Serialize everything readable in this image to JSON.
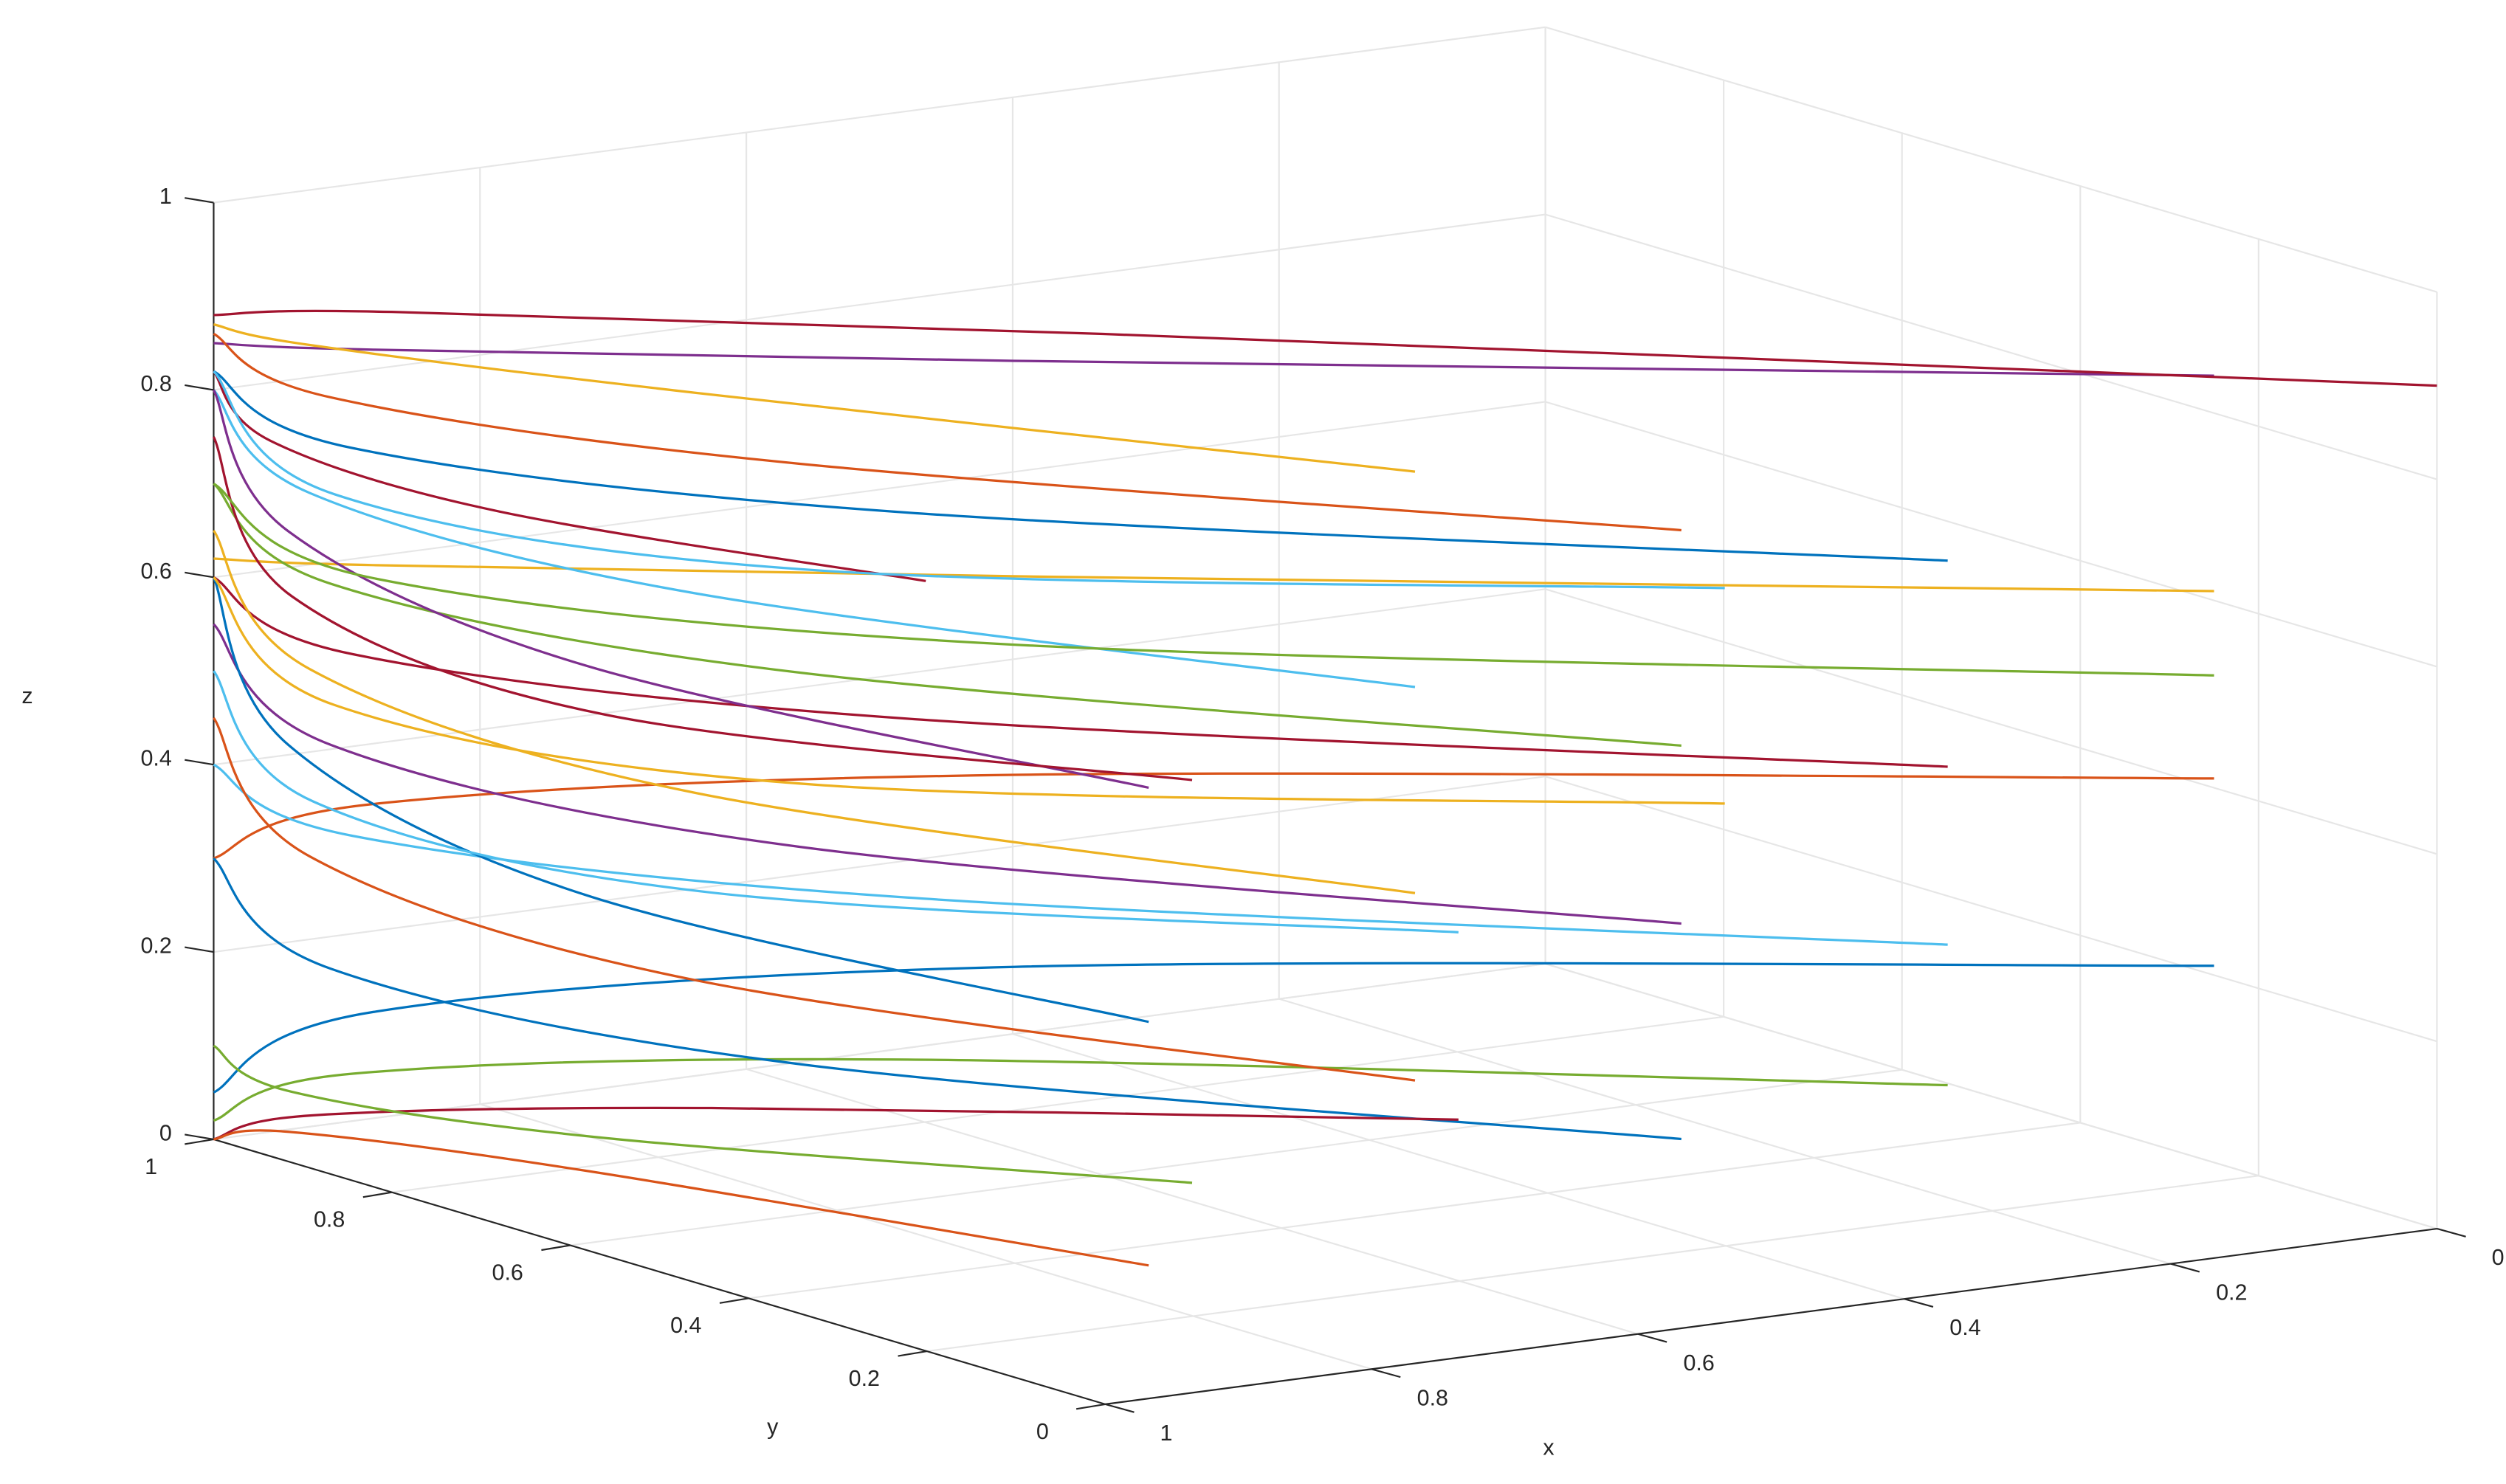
{
  "chart_data": {
    "type": "line3d",
    "xlabel": "x",
    "ylabel": "y",
    "zlabel": "z",
    "xlim": [
      0,
      1
    ],
    "ylim": [
      0,
      1
    ],
    "zlim": [
      0,
      1
    ],
    "xticks": [
      0,
      0.2,
      0.4,
      0.6,
      0.8,
      1
    ],
    "yticks": [
      0,
      0.2,
      0.4,
      0.6,
      0.8,
      1
    ],
    "zticks": [
      0,
      0.2,
      0.4,
      0.6,
      0.8,
      1
    ],
    "grid": true,
    "series": [
      {
        "color": "#7E2F8E",
        "x": [
          0,
          0.6,
          0.92,
          1
        ],
        "y": [
          0.25,
          0.7,
          0.94,
          1
        ],
        "z": [
          0.84,
          0.841,
          0.845,
          0.85
        ]
      },
      {
        "color": "#EDB120",
        "x": [
          0,
          0.6,
          0.92,
          1
        ],
        "y": [
          0.25,
          0.7,
          0.94,
          1
        ],
        "z": [
          0.61,
          0.611,
          0.615,
          0.62
        ]
      },
      {
        "color": "#D95319",
        "x": [
          0,
          0.6,
          0.92,
          1
        ],
        "y": [
          0.25,
          0.7,
          0.94,
          1
        ],
        "z": [
          0.41,
          0.399,
          0.36,
          0.3
        ]
      },
      {
        "color": "#0072BD",
        "x": [
          0,
          0.6,
          0.92,
          1
        ],
        "y": [
          0.25,
          0.7,
          0.94,
          1
        ],
        "z": [
          0.21,
          0.194,
          0.138,
          0.05
        ]
      },
      {
        "color": "#0072BD",
        "x": [
          0.2,
          0.68,
          0.936,
          1
        ],
        "y": [
          0.25,
          0.7,
          0.94,
          1
        ],
        "z": [
          0.68,
          0.694,
          0.743,
          0.82
        ]
      },
      {
        "color": "#A2142F",
        "x": [
          0.2,
          0.68,
          0.936,
          1
        ],
        "y": [
          0.25,
          0.7,
          0.94,
          1
        ],
        "z": [
          0.46,
          0.474,
          0.523,
          0.6
        ]
      },
      {
        "color": "#4DBEEE",
        "x": [
          0.2,
          0.68,
          0.936,
          1
        ],
        "y": [
          0.25,
          0.7,
          0.94,
          1
        ],
        "z": [
          0.27,
          0.283,
          0.329,
          0.4
        ]
      },
      {
        "color": "#77AC30",
        "x": [
          0.2,
          0.68,
          0.936,
          1
        ],
        "y": [
          0.25,
          0.7,
          0.94,
          1
        ],
        "z": [
          0.12,
          0.11,
          0.075,
          0.02
        ]
      },
      {
        "color": "#A2142F",
        "x": [
          0,
          0.6,
          0.92,
          1
        ],
        "y": [
          0,
          0.6,
          0.92,
          1
        ],
        "z": [
          0.9,
          0.898,
          0.891,
          0.88
        ]
      },
      {
        "color": "#D95319",
        "x": [
          0.4,
          0.76,
          0.952,
          1
        ],
        "y": [
          0.25,
          0.7,
          0.94,
          1
        ],
        "z": [
          0.75,
          0.761,
          0.8,
          0.86
        ]
      },
      {
        "color": "#77AC30",
        "x": [
          0.4,
          0.76,
          0.952,
          1
        ],
        "y": [
          0.25,
          0.7,
          0.94,
          1
        ],
        "z": [
          0.52,
          0.538,
          0.601,
          0.7
        ]
      },
      {
        "color": "#7E2F8E",
        "x": [
          0.4,
          0.76,
          0.952,
          1
        ],
        "y": [
          0.25,
          0.7,
          0.94,
          1
        ],
        "z": [
          0.33,
          0.352,
          0.429,
          0.55
        ]
      },
      {
        "color": "#0072BD",
        "x": [
          0.4,
          0.76,
          0.952,
          1
        ],
        "y": [
          0.25,
          0.7,
          0.94,
          1
        ],
        "z": [
          0.1,
          0.12,
          0.19,
          0.3
        ]
      },
      {
        "color": "#A2142F",
        "x": [
          0.4,
          0.76,
          0.952,
          1
        ],
        "y": [
          0.5,
          0.8,
          0.96,
          1
        ],
        "z": [
          0.05,
          0.045,
          0.028,
          0
        ]
      },
      {
        "color": "#EDB120",
        "x": [
          0.6,
          0.84,
          0.968,
          1
        ],
        "y": [
          0.25,
          0.7,
          0.94,
          1
        ],
        "z": [
          0.85,
          0.852,
          0.859,
          0.87
        ]
      },
      {
        "color": "#4DBEEE",
        "x": [
          0.6,
          0.84,
          0.968,
          1
        ],
        "y": [
          0.25,
          0.7,
          0.94,
          1
        ],
        "z": [
          0.62,
          0.638,
          0.701,
          0.8
        ]
      },
      {
        "color": "#EDB120",
        "x": [
          0.6,
          0.84,
          0.968,
          1
        ],
        "y": [
          0.25,
          0.7,
          0.94,
          1
        ],
        "z": [
          0.4,
          0.425,
          0.513,
          0.65
        ]
      },
      {
        "color": "#D95319",
        "x": [
          0.6,
          0.84,
          0.968,
          1
        ],
        "y": [
          0.25,
          0.7,
          0.94,
          1
        ],
        "z": [
          0.2,
          0.225,
          0.313,
          0.45
        ]
      },
      {
        "color": "#77AC30",
        "x": [
          0.6,
          0.84,
          0.968,
          1
        ],
        "y": [
          0.5,
          0.8,
          0.96,
          1
        ],
        "z": [
          0.02,
          0.028,
          0.056,
          0.1
        ]
      },
      {
        "color": "#D95319",
        "x": [
          0.8,
          0.92,
          0.984,
          1
        ],
        "y": [
          0.25,
          0.7,
          0.94,
          1
        ],
        "z": [
          0.04,
          0.036,
          0.022,
          0
        ]
      },
      {
        "color": "#7E2F8E",
        "x": [
          0.8,
          0.92,
          0.984,
          1
        ],
        "y": [
          0.25,
          0.7,
          0.94,
          1
        ],
        "z": [
          0.55,
          0.575,
          0.663,
          0.8
        ]
      },
      {
        "color": "#0072BD",
        "x": [
          0.8,
          0.92,
          0.984,
          1
        ],
        "y": [
          0.25,
          0.7,
          0.94,
          1
        ],
        "z": [
          0.3,
          0.33,
          0.435,
          0.6
        ]
      },
      {
        "color": "#A2142F",
        "x": [
          0.8,
          0.92,
          0.984,
          1
        ],
        "y": [
          0.5,
          0.8,
          0.96,
          1
        ],
        "z": [
          0.7,
          0.712,
          0.754,
          0.82
        ]
      },
      {
        "color": "#4DBEEE",
        "x": [
          0.4,
          0.76,
          0.952,
          1
        ],
        "y": [
          0.5,
          0.8,
          0.96,
          1
        ],
        "z": [
          0.25,
          0.275,
          0.363,
          0.5
        ]
      },
      {
        "color": "#A2142F",
        "x": [
          0.6,
          0.84,
          0.968,
          1
        ],
        "y": [
          0.5,
          0.8,
          0.96,
          1
        ],
        "z": [
          0.45,
          0.48,
          0.585,
          0.75
        ]
      },
      {
        "color": "#EDB120",
        "x": [
          0.2,
          0.68,
          0.936,
          1
        ],
        "y": [
          0.5,
          0.8,
          0.96,
          1
        ],
        "z": [
          0.35,
          0.375,
          0.463,
          0.6
        ]
      },
      {
        "color": "#77AC30",
        "x": [
          0,
          0.6,
          0.92,
          1
        ],
        "y": [
          0.25,
          0.7,
          0.94,
          1
        ],
        "z": [
          0.52,
          0.538,
          0.601,
          0.7
        ]
      },
      {
        "color": "#4DBEEE",
        "x": [
          0.2,
          0.68,
          0.936,
          1
        ],
        "y": [
          0.5,
          0.8,
          0.96,
          1
        ],
        "z": [
          0.58,
          0.604,
          0.688,
          0.82
        ]
      }
    ]
  }
}
